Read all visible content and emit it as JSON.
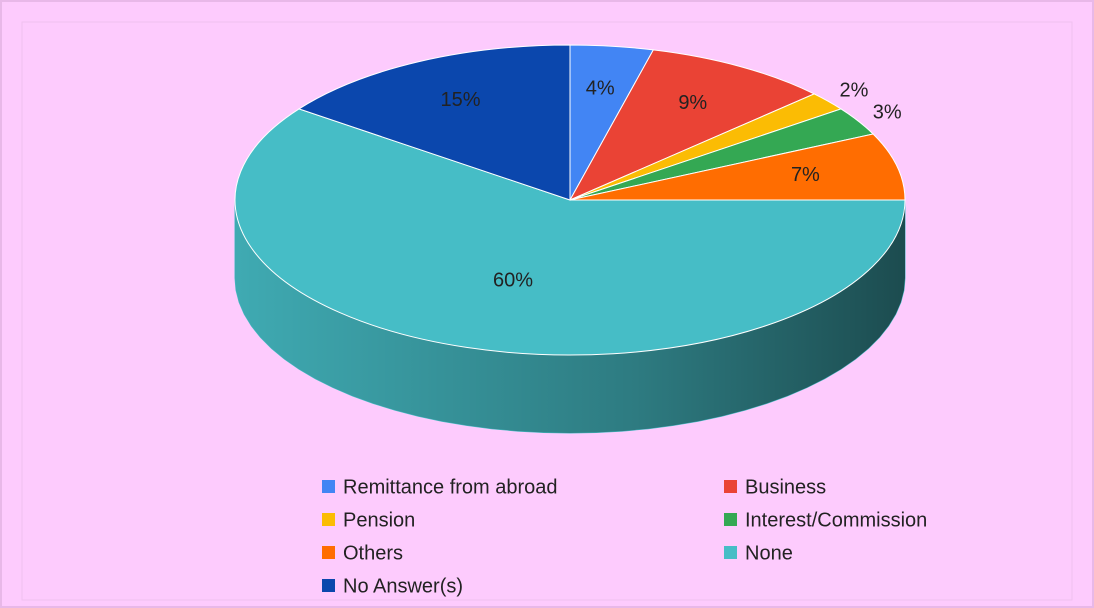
{
  "chart_data": {
    "type": "pie",
    "categories": [
      "Remittance from abroad",
      "Business",
      "Pension",
      "Interest/Commission",
      "Others",
      "None",
      "No Answer(s)"
    ],
    "values": [
      4,
      9,
      2,
      3,
      7,
      60,
      15
    ],
    "value_labels": [
      "4%",
      "9%",
      "2%",
      "3%",
      "7%",
      "60%",
      "15%"
    ],
    "colors": [
      "#4285f4",
      "#ea4335",
      "#fbbc04",
      "#34a853",
      "#ff6d01",
      "#46bdc6",
      "#0b47ad"
    ],
    "legend": "bottom"
  }
}
